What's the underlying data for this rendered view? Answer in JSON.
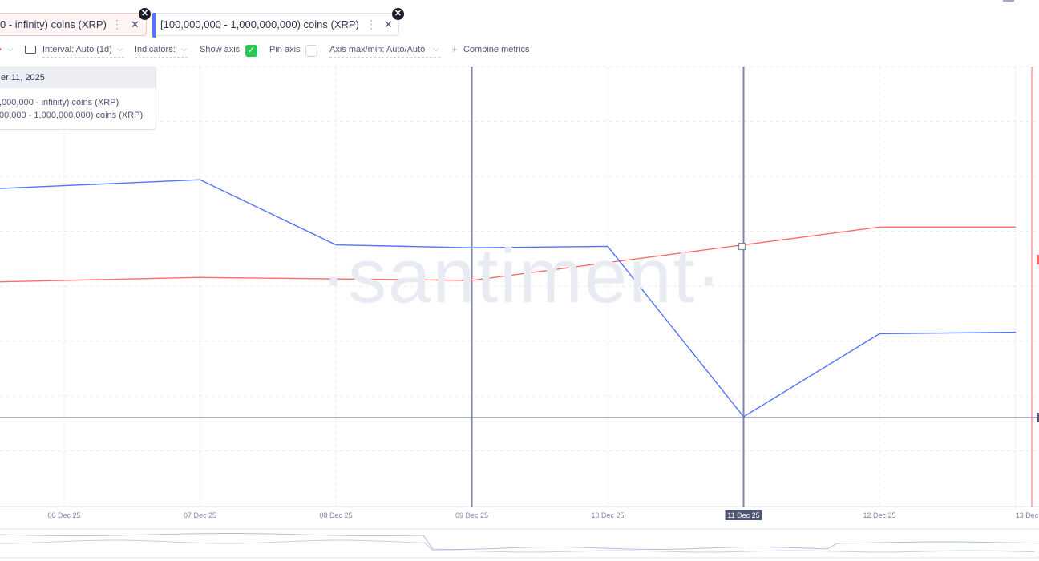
{
  "tabs": [
    {
      "label": "0 - infinity) coins (XRP)",
      "color": "#ff5b5b"
    },
    {
      "label": "[100,000,000 - 1,000,000,000) coins (XRP)",
      "color": "#5275ff"
    }
  ],
  "toolbar": {
    "interval": "Interval: Auto (1d)",
    "indicators": "Indicators:",
    "show_axis": "Show axis",
    "show_axis_checked": true,
    "pin_axis": "Pin axis",
    "pin_axis_checked": false,
    "axis_maxmin": "Axis max/min: Auto/Auto",
    "combine_metrics": "Combine metrics"
  },
  "tooltip": {
    "date": "er 11, 2025",
    "rows": [
      ",000,000 - infinity) coins (XRP)",
      "00,000 - 1,000,000,000) coins (XRP)"
    ]
  },
  "watermark": "·santiment·",
  "chart_data": {
    "type": "line",
    "x": [
      "06 Dec 25",
      "07 Dec 25",
      "08 Dec 25",
      "09 Dec 25",
      "10 Dec 25",
      "11 Dec 25",
      "12 Dec 25",
      "13 Dec"
    ],
    "x_tick_labels": [
      "06 Dec 25",
      "07 Dec 25",
      "08 Dec 25",
      "09 Dec 25",
      "10 Dec 25",
      "11 Dec 25",
      "12 Dec 25",
      "13 Dec"
    ],
    "highlighted_tick": "11 Dec 25",
    "series": [
      {
        "name": "0 - infinity) coins (XRP)",
        "color": "#ff6b6b",
        "values": [
          0.46,
          0.47,
          0.465,
          0.46,
          0.52,
          0.58,
          0.64,
          0.64
        ]
      },
      {
        "name": "[100,000,000 - 1,000,000,000) coins (XRP)",
        "color": "#5275ff",
        "values": [
          0.78,
          0.8,
          0.58,
          0.57,
          0.575,
          0.0,
          0.28,
          0.285
        ]
      }
    ],
    "y_axis_shown": false,
    "grid": true,
    "legend": "none"
  }
}
